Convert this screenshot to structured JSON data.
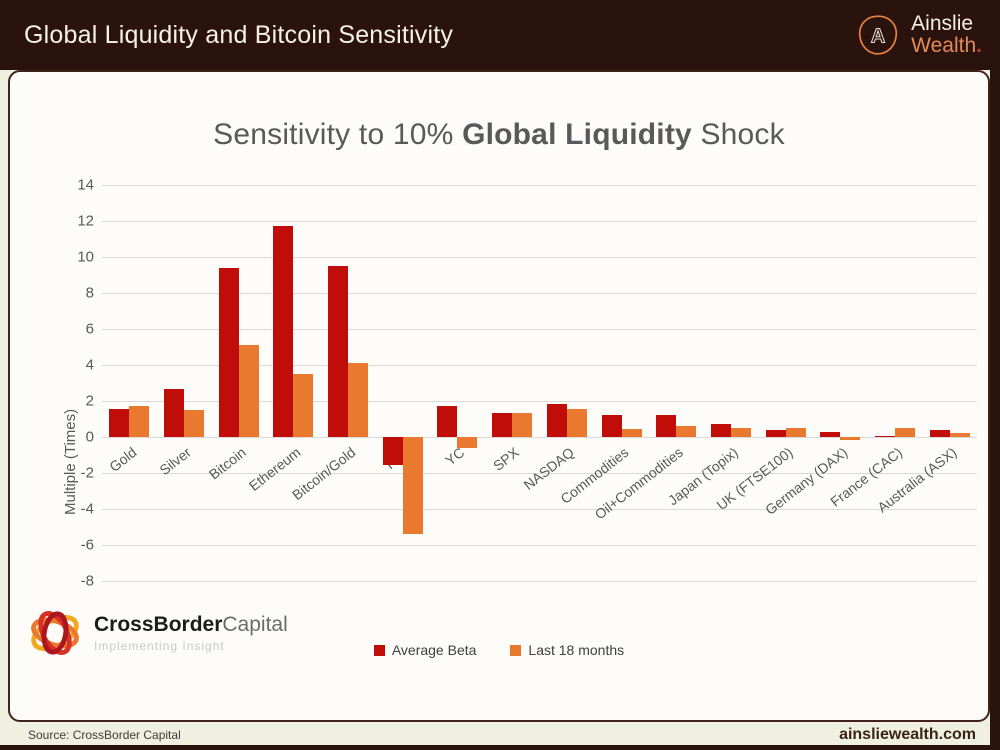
{
  "header": {
    "title": "Global Liquidity and Bitcoin Sensitivity",
    "brand_line1": "Ainslie",
    "brand_line2": "Wealth",
    "brand_dot": "."
  },
  "chart_data": {
    "type": "bar",
    "title_parts": {
      "pre": "Sensitivity to 10% ",
      "bold": "Global Liquidity",
      "post": " Shock"
    },
    "ylabel": "Multiple (Times)",
    "ylim": [
      -8,
      14
    ],
    "ytick_step": 2,
    "grid": true,
    "legend_position": "bottom",
    "categories": [
      "Gold",
      "Silver",
      "Bitcoin",
      "Ethereum",
      "Bitcoin/Gold",
      "R10",
      "YC",
      "SPX",
      "NASDAQ",
      "Commodities",
      "Oil+Commodities",
      "Japan (Topix)",
      "UK (FTSE100)",
      "Germany (DAX)",
      "France (CAC)",
      "Australia (ASX)"
    ],
    "series": [
      {
        "name": "Average Beta",
        "color": "#c00d0a",
        "values": [
          1.55,
          2.65,
          9.4,
          11.75,
          9.5,
          -1.55,
          1.75,
          1.35,
          1.85,
          1.2,
          1.2,
          0.7,
          0.4,
          0.3,
          0.05,
          0.4
        ]
      },
      {
        "name": "Last 18 months",
        "color": "#e8792f",
        "values": [
          1.7,
          1.5,
          5.1,
          3.5,
          4.1,
          -5.4,
          -0.6,
          1.35,
          1.55,
          0.45,
          0.6,
          0.5,
          0.5,
          -0.15,
          0.5,
          0.25
        ]
      }
    ]
  },
  "crossborder_logo": {
    "name_bold": "CrossBorder",
    "name_regular": "Capital",
    "tagline": "Implementing Insight"
  },
  "footer": {
    "source": "Source: CrossBorder Capital",
    "site": "ainsliewealth.com"
  },
  "colors": {
    "header_bg": "#2b130d",
    "page_bg": "#f0f0e1",
    "card_border": "#40221a",
    "series_red": "#c00d0a",
    "series_orange": "#e8792f",
    "gridline": "#d9d9d9",
    "title_text": "#595959"
  }
}
